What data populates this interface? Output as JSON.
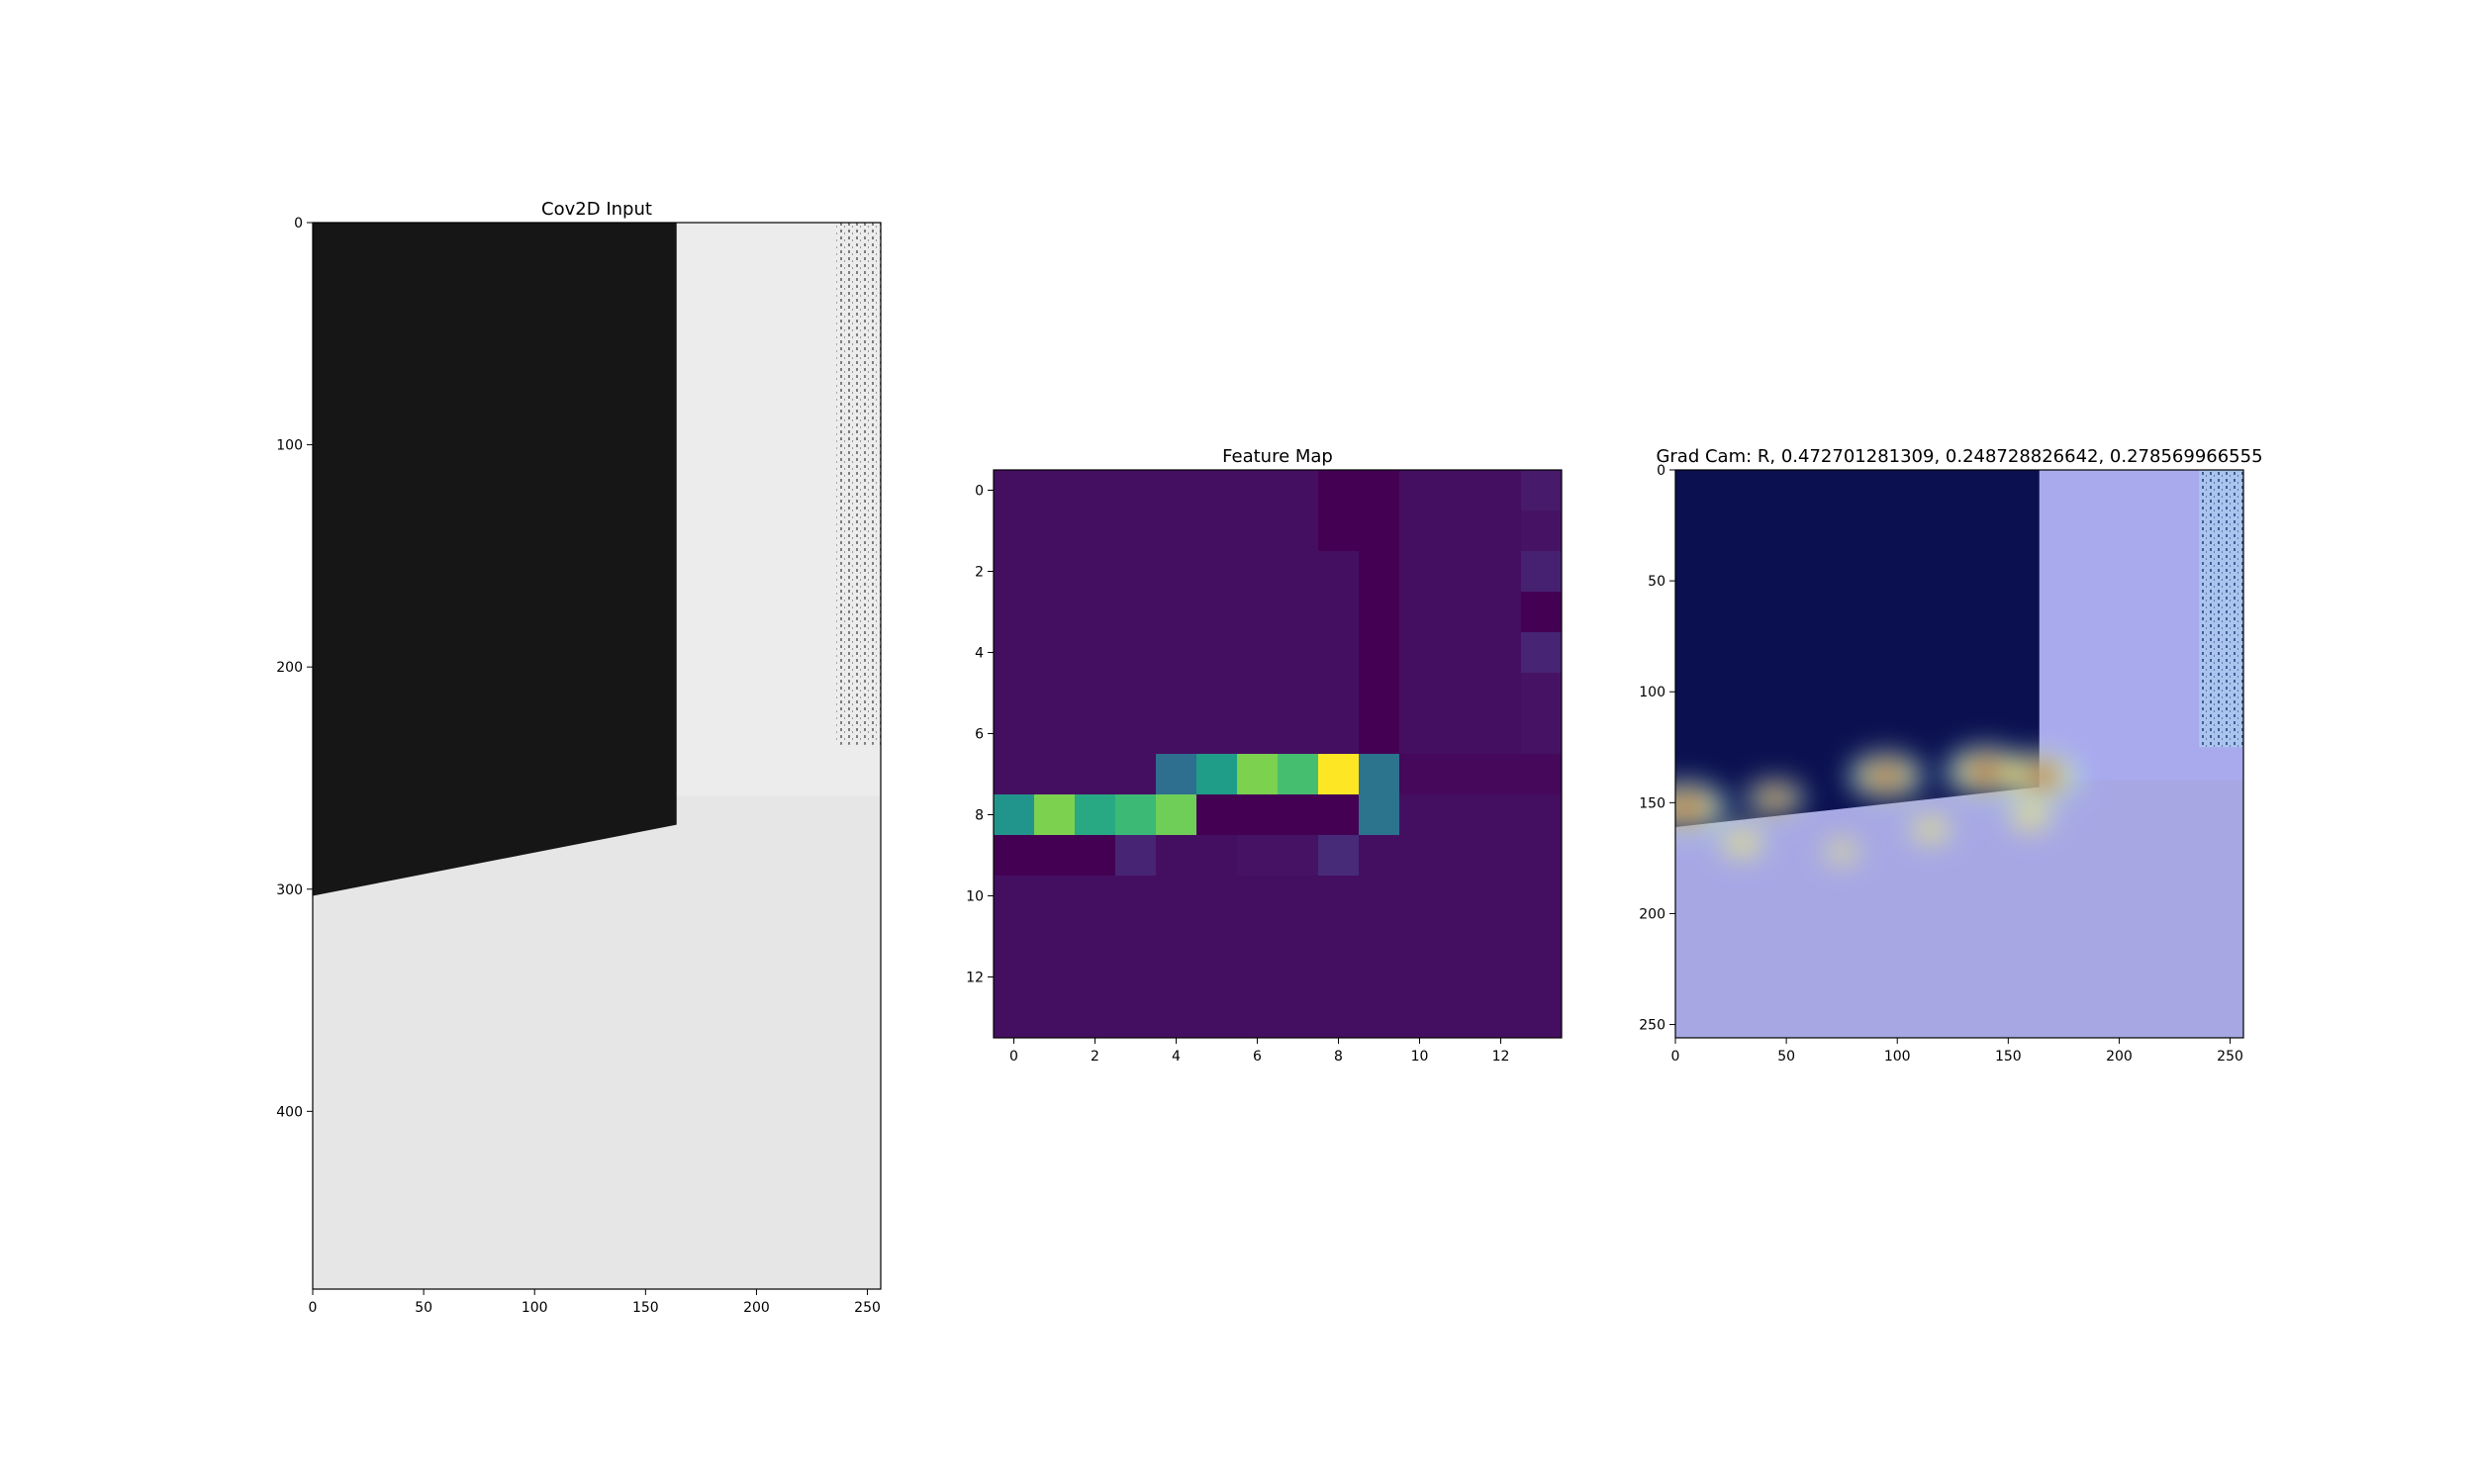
{
  "chart_data": [
    {
      "type": "image",
      "title": "Cov2D Input",
      "x_ticks": [
        0,
        50,
        100,
        150,
        200,
        250
      ],
      "y_ticks": [
        0,
        100,
        200,
        300,
        400
      ],
      "xlim": [
        0,
        256
      ],
      "ylim": [
        480,
        0
      ],
      "colormap": "gray",
      "regions": {
        "dark_block": {
          "x": [
            0,
            164
          ],
          "top_y": 0,
          "bottom_y_at_x0": 303,
          "bottom_y_at_x164": 271,
          "color": "#161616"
        },
        "background": {
          "color": "#e6e6e6"
        },
        "upper_right_region": {
          "x": [
            164,
            256
          ],
          "y": [
            0,
            258
          ],
          "color": "#ececec"
        },
        "speckle_texture": {
          "x": [
            236,
            256
          ],
          "y": [
            0,
            235
          ]
        }
      }
    },
    {
      "type": "heatmap",
      "title": "Feature Map",
      "x_ticks": [
        0,
        2,
        4,
        6,
        8,
        10,
        12
      ],
      "y_ticks": [
        0,
        2,
        4,
        6,
        8,
        10,
        12
      ],
      "colormap": "viridis",
      "vmin": 0,
      "vmax": 1,
      "values": [
        [
          0.04,
          0.04,
          0.04,
          0.04,
          0.04,
          0.04,
          0.04,
          0.04,
          0.0,
          0.0,
          0.04,
          0.04,
          0.04,
          0.07
        ],
        [
          0.04,
          0.04,
          0.04,
          0.04,
          0.04,
          0.04,
          0.04,
          0.04,
          0.0,
          0.0,
          0.04,
          0.04,
          0.04,
          0.05
        ],
        [
          0.04,
          0.04,
          0.04,
          0.04,
          0.04,
          0.04,
          0.04,
          0.04,
          0.04,
          0.0,
          0.04,
          0.04,
          0.04,
          0.09
        ],
        [
          0.04,
          0.04,
          0.04,
          0.04,
          0.04,
          0.04,
          0.04,
          0.04,
          0.04,
          0.0,
          0.04,
          0.04,
          0.04,
          0.0
        ],
        [
          0.04,
          0.04,
          0.04,
          0.04,
          0.04,
          0.04,
          0.04,
          0.04,
          0.04,
          0.0,
          0.04,
          0.04,
          0.04,
          0.1
        ],
        [
          0.04,
          0.04,
          0.04,
          0.04,
          0.04,
          0.04,
          0.04,
          0.04,
          0.04,
          0.0,
          0.04,
          0.04,
          0.04,
          0.05
        ],
        [
          0.04,
          0.04,
          0.04,
          0.04,
          0.04,
          0.04,
          0.04,
          0.04,
          0.04,
          0.0,
          0.04,
          0.04,
          0.04,
          0.05
        ],
        [
          0.04,
          0.04,
          0.04,
          0.04,
          0.36,
          0.55,
          0.8,
          0.7,
          1.0,
          0.38,
          0.02,
          0.02,
          0.02,
          0.02
        ],
        [
          0.52,
          0.8,
          0.6,
          0.68,
          0.78,
          0.0,
          0.0,
          0.0,
          0.0,
          0.38,
          0.04,
          0.04,
          0.04,
          0.04
        ],
        [
          0.0,
          0.0,
          0.0,
          0.1,
          0.04,
          0.04,
          0.05,
          0.05,
          0.12,
          0.04,
          0.04,
          0.04,
          0.04,
          0.04
        ],
        [
          0.04,
          0.04,
          0.04,
          0.04,
          0.04,
          0.04,
          0.04,
          0.04,
          0.04,
          0.04,
          0.04,
          0.04,
          0.04,
          0.04
        ],
        [
          0.04,
          0.04,
          0.04,
          0.04,
          0.04,
          0.04,
          0.04,
          0.04,
          0.04,
          0.04,
          0.04,
          0.04,
          0.04,
          0.04
        ],
        [
          0.04,
          0.04,
          0.04,
          0.04,
          0.04,
          0.04,
          0.04,
          0.04,
          0.04,
          0.04,
          0.04,
          0.04,
          0.04,
          0.04
        ],
        [
          0.04,
          0.04,
          0.04,
          0.04,
          0.04,
          0.04,
          0.04,
          0.04,
          0.04,
          0.04,
          0.04,
          0.04,
          0.04,
          0.04
        ]
      ]
    },
    {
      "type": "image",
      "title": "Grad Cam: R, 0.472701281309, 0.248728826642, 0.278569966555",
      "x_ticks": [
        0,
        50,
        100,
        150,
        200,
        250
      ],
      "y_ticks": [
        0,
        50,
        100,
        150,
        200,
        250
      ],
      "xlim": [
        0,
        256
      ],
      "ylim": [
        256,
        0
      ],
      "colormap": "jet overlay",
      "regions": {
        "background": {
          "color": "#a7a7e4"
        },
        "dark_block": {
          "x": [
            0,
            164
          ],
          "top_y": 0,
          "bottom_y_at_x0": 161,
          "bottom_y_at_x164": 143,
          "color": "#0b1050"
        },
        "upper_right_region": {
          "x": [
            164,
            256
          ],
          "y": [
            0,
            140
          ],
          "color": "#a9a9ee"
        },
        "speckle_texture": {
          "x": [
            236,
            256
          ],
          "y": [
            0,
            125
          ]
        },
        "hotspots": [
          {
            "x": 5,
            "y": 152,
            "intensity": 1.0
          },
          {
            "x": 45,
            "y": 148,
            "intensity": 0.65
          },
          {
            "x": 95,
            "y": 138,
            "intensity": 0.9
          },
          {
            "x": 140,
            "y": 136,
            "intensity": 1.0
          },
          {
            "x": 165,
            "y": 138,
            "intensity": 0.95
          },
          {
            "x": 160,
            "y": 156,
            "intensity": 0.5
          },
          {
            "x": 115,
            "y": 162,
            "intensity": 0.45
          },
          {
            "x": 30,
            "y": 168,
            "intensity": 0.5
          },
          {
            "x": 75,
            "y": 172,
            "intensity": 0.35
          }
        ]
      }
    }
  ]
}
